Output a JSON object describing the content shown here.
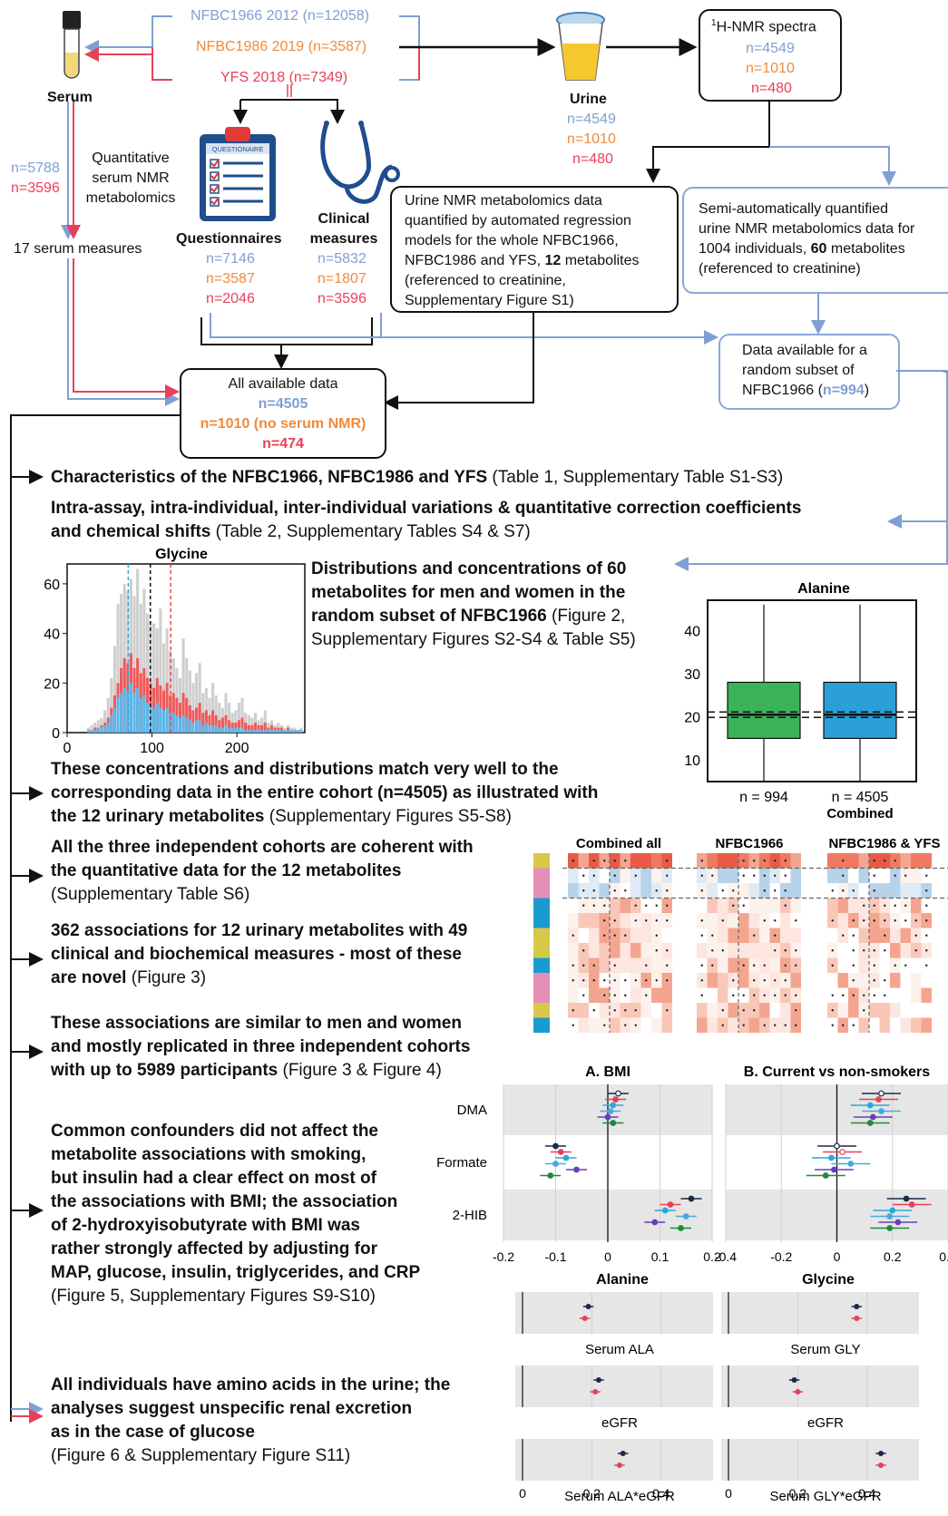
{
  "cohorts": {
    "nfbc1966": "NFBC1966 2012 (n=12058)",
    "nfbc1986": "NFBC1986 2019 (n=3587)",
    "yfs": "YFS 2018 (n=7349)"
  },
  "serum": {
    "label": "Serum",
    "n_blue": "n=5788",
    "n_red": "n=3596",
    "method": "Quantitative serum NMR metabolomics",
    "measures": "17 serum measures"
  },
  "urine": {
    "label": "Urine",
    "n": [
      "n=4549",
      "n=1010",
      "n=480"
    ]
  },
  "nmr_spectra": {
    "title": "H-NMR spectra",
    "sup": "1",
    "n": [
      "n=4549",
      "n=1010",
      "n=480"
    ]
  },
  "questionnaires": {
    "label": "Questionnaires",
    "icon_text": "QUESTIONAIRE",
    "n": [
      "n=7146",
      "n=3587",
      "n=2046"
    ]
  },
  "clinical": {
    "label_1": "Clinical",
    "label_2": "measures",
    "n": [
      "n=5832",
      "n=1807",
      "n=3596"
    ]
  },
  "urine_nmr_box": {
    "text_1": "Urine NMR metabolomics data",
    "text_2": "quantified by automated regression",
    "text_3": "models for the whole NFBC1966,",
    "text_4a": "NFBC1986 and YFS, ",
    "text_4b": "12",
    "text_4c": " metabolites",
    "text_5": "(referenced to creatinine,",
    "text_6": "Supplementary Figure S1)"
  },
  "semi_box": {
    "text_1": "Semi-automatically quantified",
    "text_2": "urine NMR metabolomics data for",
    "text_3a": "1004 individuals, ",
    "text_3b": "60",
    "text_3c": " metabolites",
    "text_4": "(referenced to creatinine)"
  },
  "subset_box": {
    "text_1": "Data available for a",
    "text_2": "random subset of",
    "text_3a": "NFBC1966 (",
    "text_3b": "n=994",
    "text_3c": ")"
  },
  "all_data": {
    "title": "All available data",
    "n_blue": "n=4505",
    "n_orange": "n=1010 (no serum NMR)",
    "n_red": "n=474"
  },
  "findings": {
    "f1_bold": "Characteristics of the NFBC1966, NFBC1986 and YFS",
    "f1_rest": " (Table 1, Supplementary Table S1-S3)",
    "f2_bold_1": "Intra-assay, intra-individual, inter-individual variations & quantitative correction coefficients",
    "f2_bold_2": "and chemical shifts",
    "f2_rest": " (Table 2, Supplementary Tables S4 & S7)",
    "f3_l1": "Distributions and concentrations of 60",
    "f3_l2": "metabolites for  men and women in the",
    "f3_l3b": "random subset of NFBC1966",
    "f3_l3r": " (Figure 2,",
    "f3_l4": "Supplementary Figures S2-S4 & Table S5)",
    "f4_l1": "These concentrations and distributions match very well to the",
    "f4_l2": "corresponding data in the entire cohort (n=4505) as illustrated with",
    "f4_l3b": "the 12 urinary metabolites",
    "f4_l3r": " (Supplementary Figures S5-S8)",
    "f5_l1": "All the three independent cohorts are coherent with",
    "f5_l2": "the quantitative data for the 12 metabolites",
    "f5_l3": "(Supplementary Table S6)",
    "f6_l1": "362 associations for 12 urinary metabolites with 49",
    "f6_l2": "clinical and biochemical measures - most of these",
    "f6_l3b": "are novel",
    "f6_l3r": " (Figure 3)",
    "f7_l1": "These associations are similar to men and women",
    "f7_l2": "and mostly replicated in three independent cohorts",
    "f7_l3b": "with up to 5989 participants",
    "f7_l3r": " (Figure 3 & Figure 4)",
    "f8_l1": "Common confounders did not affect the",
    "f8_l2": "metabolite associations with smoking,",
    "f8_l3": "but insulin had a clear effect on most of",
    "f8_l4": "the associations with BMI; the association",
    "f8_l5": "of 2-hydroxyisobutyrate with BMI was",
    "f8_l6": "rather strongly affected by adjusting for",
    "f8_l7": "MAP, glucose, insulin, triglycerides, and CRP",
    "f8_l8": "(Figure 5, Supplementary Figures S9-S10)",
    "f9_l1": "All individuals have amino acids in the urine; the",
    "f9_l2": "analyses suggest unspecific renal excretion",
    "f9_l3": "as in the case of glucose",
    "f9_l4": "(Figure 6 & Supplementary Figure S11)"
  },
  "chart_data": [
    {
      "type": "bar",
      "title": "Glycine",
      "x_ticks": [
        "0",
        "100",
        "200"
      ],
      "y_ticks": [
        "0",
        "20",
        "40",
        "60"
      ],
      "xlim": [
        0,
        280
      ],
      "ylim": [
        0,
        68
      ],
      "series": [
        {
          "color": "#cfcfcf",
          "values": [
            2,
            3,
            4,
            5,
            6,
            9,
            14,
            22,
            35,
            52,
            56,
            60,
            57,
            62,
            55,
            66,
            52,
            58,
            48,
            45,
            44,
            42,
            50,
            36,
            42,
            33,
            30,
            26,
            22,
            38,
            30,
            25,
            20,
            24,
            28,
            16,
            18,
            14,
            20,
            15,
            12,
            10,
            16,
            12,
            8,
            9,
            12,
            14,
            8,
            7,
            6,
            8,
            5,
            6,
            9,
            4,
            5,
            3,
            4,
            3,
            2,
            3,
            2,
            2,
            1,
            2
          ]
        },
        {
          "color": "#f05a5a",
          "values": [
            1,
            1,
            2,
            2,
            3,
            4,
            6,
            10,
            15,
            20,
            26,
            30,
            28,
            32,
            26,
            30,
            24,
            26,
            22,
            20,
            18,
            22,
            19,
            17,
            20,
            15,
            16,
            14,
            12,
            16,
            14,
            11,
            9,
            10,
            12,
            8,
            9,
            7,
            9,
            7,
            5,
            6,
            7,
            5,
            4,
            4,
            5,
            6,
            4,
            3,
            3,
            4,
            3,
            3,
            4,
            2,
            3,
            2,
            2,
            2,
            1,
            2,
            1,
            1,
            1,
            1
          ]
        },
        {
          "color": "#5bb6e8",
          "values": [
            1,
            1,
            1,
            2,
            2,
            3,
            4,
            7,
            10,
            14,
            16,
            18,
            17,
            20,
            16,
            18,
            14,
            15,
            12,
            11,
            10,
            12,
            10,
            9,
            10,
            8,
            8,
            7,
            6,
            7,
            6,
            5,
            4,
            5,
            5,
            3,
            4,
            3,
            3,
            3,
            2,
            2,
            3,
            2,
            2,
            2,
            2,
            2,
            1,
            1,
            1,
            1,
            1,
            1,
            1,
            1,
            1,
            1,
            1,
            1,
            1,
            1,
            1,
            1,
            1,
            1
          ]
        }
      ],
      "vlines": [
        {
          "x": 72,
          "color": "#2aa9d8"
        },
        {
          "x": 98,
          "color": "#111111"
        },
        {
          "x": 122,
          "color": "#e84848"
        }
      ]
    },
    {
      "type": "box",
      "title": "Alanine",
      "y_ticks": [
        "10",
        "20",
        "30",
        "40"
      ],
      "ylim": [
        5,
        47
      ],
      "categories": [
        "n = 994",
        "n = 4505"
      ],
      "combined_label": "Combined",
      "boxes": [
        {
          "color": "#3cb35a",
          "whisker_low": 1,
          "q1": 15,
          "median": 20.5,
          "q3": 28,
          "whisker_high": 46
        },
        {
          "color": "#2a9fd8",
          "whisker_low": 1,
          "q1": 15,
          "median": 20.5,
          "q3": 28,
          "whisker_high": 46
        }
      ],
      "reference_median": 20.5
    },
    {
      "type": "heatmap",
      "panels": [
        "Combined all",
        "NFBC1966",
        "Combined NFBC1986 & YFS"
      ],
      "side_colors": [
        "#d8c84a",
        "#e58fb6",
        "#e58fb6",
        "#1a9bd0",
        "#1a9bd0",
        "#d8c84a",
        "#d8c84a",
        "#1a9bd0",
        "#e58fb6",
        "#e58fb6",
        "#d8c84a",
        "#1a9bd0"
      ],
      "rows": 12,
      "cols": 10
    },
    {
      "type": "forest",
      "panels": [
        {
          "title": "A. BMI",
          "ticks": [
            "-0.2",
            "-0.1",
            "0",
            "0.1",
            "0.2"
          ],
          "xlim": [
            -0.2,
            0.2
          ]
        },
        {
          "title": "B. Current vs non-smokers",
          "ticks": [
            "-0.4",
            "-0.2",
            "0",
            "0.2",
            "0.4"
          ],
          "xlim": [
            -0.4,
            0.4
          ]
        }
      ],
      "rows": [
        "DMA",
        "Formate",
        "2-HIB"
      ],
      "bmi_estimates": [
        [
          0.02,
          0.015,
          0.01,
          0.005,
          0.0,
          0.01
        ],
        [
          -0.1,
          -0.09,
          -0.08,
          -0.1,
          -0.06,
          -0.11
        ],
        [
          0.16,
          0.12,
          0.11,
          0.15,
          0.09,
          0.14
        ]
      ],
      "smoke_estimates": [
        [
          0.16,
          0.15,
          0.12,
          0.16,
          0.13,
          0.12
        ],
        [
          0.0,
          0.02,
          -0.02,
          0.05,
          -0.01,
          -0.04
        ],
        [
          0.25,
          0.27,
          0.2,
          0.19,
          0.22,
          0.19
        ]
      ]
    },
    {
      "type": "forest",
      "panels": [
        {
          "title": "Alanine",
          "ticks": [
            "0",
            "0.2",
            "0.4"
          ],
          "xlim": [
            0,
            0.55
          ],
          "rows": [
            "Serum ALA",
            "eGFR",
            "Serum ALA*eGFR"
          ],
          "estimates": [
            [
              0.19,
              0.18
            ],
            [
              0.22,
              0.21
            ],
            [
              0.29,
              0.28
            ]
          ]
        },
        {
          "title": "Glycine",
          "ticks": [
            "0",
            "0.2",
            "0.4"
          ],
          "xlim": [
            0,
            0.55
          ],
          "rows": [
            "Serum GLY",
            "eGFR",
            "Serum GLY*eGFR"
          ],
          "estimates": [
            [
              0.37,
              0.37
            ],
            [
              0.19,
              0.2
            ],
            [
              0.44,
              0.44
            ]
          ]
        }
      ]
    }
  ],
  "colors": {
    "nfbc1966": "#7f9fd3",
    "nfbc1986": "#f08a3c",
    "yfs": "#e8405a"
  }
}
